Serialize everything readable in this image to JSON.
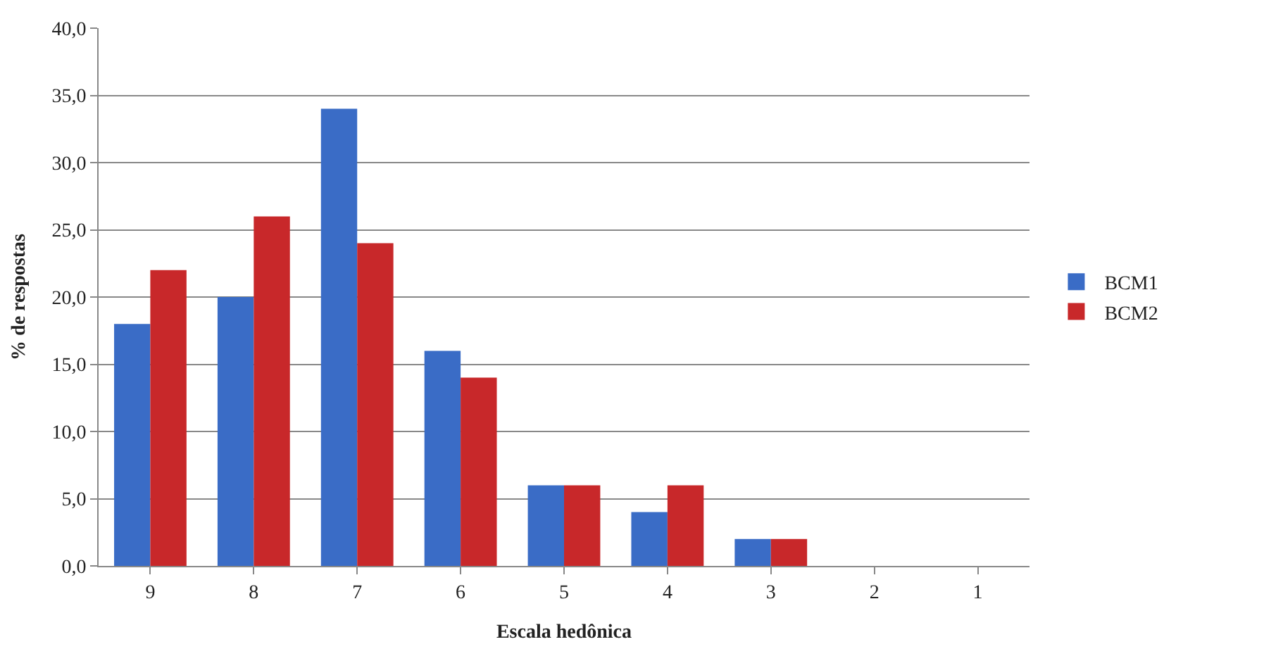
{
  "chart_data": {
    "type": "bar",
    "xlabel": "Escala hedônica",
    "ylabel": "% de respostas",
    "categories": [
      "9",
      "8",
      "7",
      "6",
      "5",
      "4",
      "3",
      "2",
      "1"
    ],
    "series": [
      {
        "name": "BCM1",
        "color": "#3a6cc6",
        "values": [
          18,
          20,
          34,
          16,
          6,
          4,
          2,
          0,
          0
        ]
      },
      {
        "name": "BCM2",
        "color": "#c8282a",
        "values": [
          22,
          26,
          24,
          14,
          6,
          6,
          2,
          0,
          0
        ]
      }
    ],
    "ylim": [
      0,
      40
    ],
    "yticks": [
      {
        "value": 0,
        "label": "0,0"
      },
      {
        "value": 5,
        "label": "5,0"
      },
      {
        "value": 10,
        "label": "10,0"
      },
      {
        "value": 15,
        "label": "15,0"
      },
      {
        "value": 20,
        "label": "20,0"
      },
      {
        "value": 25,
        "label": "25,0"
      },
      {
        "value": 30,
        "label": "30,0"
      },
      {
        "value": 35,
        "label": "35,0"
      },
      {
        "value": 40,
        "label": "40,0"
      }
    ],
    "grid": "y",
    "legend": "right"
  }
}
